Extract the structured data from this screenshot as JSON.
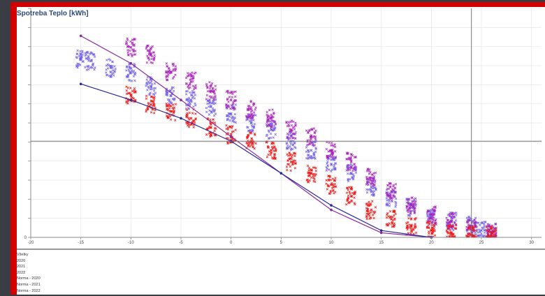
{
  "chart_data": {
    "type": "scatter",
    "title": "Spotreba Teplo [kWh]",
    "xlabel": "",
    "ylabel": "",
    "xlim": [
      -20,
      31
    ],
    "ylim": [
      0,
      100
    ],
    "x_ticks": [
      "-20",
      "-15",
      "-10",
      "-5",
      "0",
      "5",
      "10",
      "15",
      "20",
      "25",
      "30"
    ],
    "x_tick_values": [
      -20,
      -15,
      -10,
      -5,
      0,
      5,
      10,
      15,
      20,
      25,
      30
    ],
    "grid": true,
    "legend_position": "bottom",
    "legend": [
      "Všetky",
      "2020",
      "2021",
      "2022",
      "Norma - 2020",
      "Norma - 2021",
      "Norma - 2022"
    ],
    "scatter_series": [
      {
        "name": "2020",
        "color": "#6f5fe8",
        "points": [
          [
            -15,
            78
          ],
          [
            -14,
            77
          ],
          [
            -12,
            74
          ],
          [
            -10,
            72
          ],
          [
            -8,
            66
          ],
          [
            -6,
            62
          ],
          [
            -4,
            60
          ],
          [
            -2,
            57
          ],
          [
            0,
            54
          ],
          [
            2,
            50
          ],
          [
            4,
            47
          ],
          [
            6,
            42
          ],
          [
            8,
            38
          ],
          [
            10,
            32
          ],
          [
            12,
            28
          ],
          [
            14,
            22
          ],
          [
            16,
            17
          ],
          [
            18,
            13
          ],
          [
            20,
            9
          ],
          [
            22,
            7
          ],
          [
            24,
            5
          ],
          [
            25,
            3
          ],
          [
            26,
            2
          ]
        ]
      },
      {
        "name": "2021",
        "color": "#a81fb8",
        "points": [
          [
            -10,
            83
          ],
          [
            -8,
            80
          ],
          [
            -6,
            72
          ],
          [
            -4,
            68
          ],
          [
            -2,
            64
          ],
          [
            0,
            60
          ],
          [
            2,
            56
          ],
          [
            4,
            52
          ],
          [
            6,
            47
          ],
          [
            8,
            44
          ],
          [
            10,
            38
          ],
          [
            12,
            33
          ],
          [
            14,
            26
          ],
          [
            16,
            20
          ],
          [
            18,
            14
          ],
          [
            20,
            10
          ],
          [
            22,
            7
          ],
          [
            24,
            4
          ],
          [
            26,
            2
          ]
        ]
      },
      {
        "name": "2022",
        "color": "#ee1111",
        "points": [
          [
            -10,
            62
          ],
          [
            -8,
            58
          ],
          [
            -6,
            55
          ],
          [
            -4,
            52
          ],
          [
            -2,
            48
          ],
          [
            0,
            45
          ],
          [
            2,
            42
          ],
          [
            4,
            38
          ],
          [
            6,
            33
          ],
          [
            8,
            28
          ],
          [
            10,
            23
          ],
          [
            12,
            18
          ],
          [
            14,
            12
          ],
          [
            16,
            8
          ],
          [
            18,
            5
          ],
          [
            20,
            3
          ],
          [
            22,
            2
          ],
          [
            24,
            1
          ],
          [
            26,
            1
          ]
        ]
      }
    ],
    "norma_lines": [
      {
        "name": "Norma - 2021",
        "color": "#8a2a9a",
        "x": [
          -15,
          -10,
          -5,
          0,
          5,
          10,
          15,
          20
        ],
        "y": [
          88,
          76,
          60,
          44,
          28,
          12,
          2,
          0
        ]
      },
      {
        "name": "Norma - 2020",
        "color": "#2a2a9a",
        "x": [
          -15,
          -10,
          -5,
          0,
          5,
          10,
          15,
          20
        ],
        "y": [
          67,
          60,
          52,
          42,
          28,
          14,
          3,
          0
        ]
      }
    ],
    "crosshair": {
      "x": 24,
      "y": 42
    }
  }
}
